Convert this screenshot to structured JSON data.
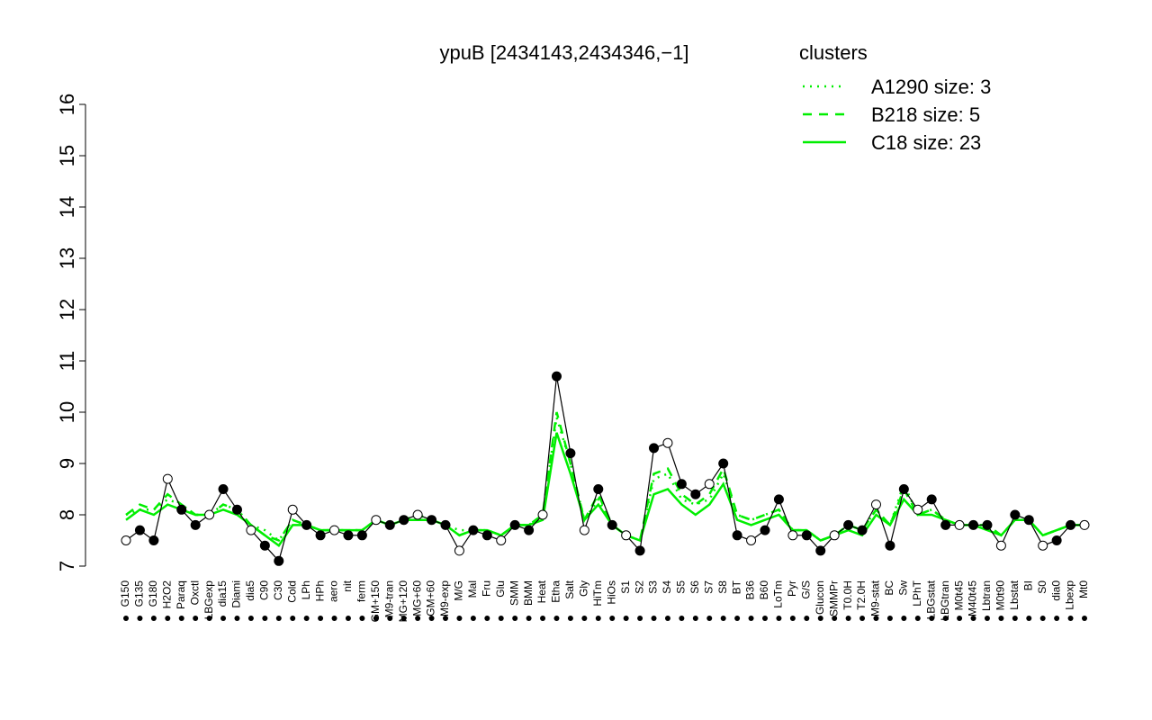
{
  "chart_data": {
    "type": "line",
    "title": "ypuB [2434143,2434346,−1]",
    "categories": [
      "G150",
      "G135",
      "G180",
      "H2O2",
      "Paraq",
      "Oxctl",
      "LBGexp",
      "dia15",
      "Diami",
      "dia5",
      "C90",
      "C30",
      "Cold",
      "LPh",
      "HPh",
      "aero",
      "nit",
      "ferm",
      "GM+150",
      "M9-tran",
      "MG+120",
      "MG+60",
      "GM+60",
      "M9-exp",
      "M/G",
      "Mal",
      "Fru",
      "Glu",
      "SMM",
      "BMM",
      "Heat",
      "Etha",
      "Salt",
      "Gly",
      "HiTm",
      "HiOs",
      "S1",
      "S2",
      "S3",
      "S4",
      "S5",
      "S6",
      "S7",
      "S8",
      "BT",
      "B36",
      "B60",
      "LoTm",
      "Pyr",
      "G/S",
      "Glucon",
      "SMMPr",
      "T0.0H",
      "T2.0H",
      "M9-stat",
      "BC",
      "Sw",
      "LPhT",
      "LBGstat",
      "LBGtran",
      "M0t45",
      "M40t45",
      "Lbtran",
      "M0t90",
      "Lbstat",
      "BI",
      "S0",
      "dia0",
      "Lbexp",
      "Mt0"
    ],
    "values": [
      7.5,
      7.7,
      7.5,
      8.7,
      8.1,
      7.8,
      8.0,
      8.5,
      8.1,
      7.7,
      7.4,
      7.1,
      8.1,
      7.8,
      7.6,
      7.7,
      7.6,
      7.6,
      7.9,
      7.8,
      7.9,
      8.0,
      7.9,
      7.8,
      7.3,
      7.7,
      7.6,
      7.5,
      7.8,
      7.7,
      8.0,
      10.7,
      9.2,
      7.7,
      8.5,
      7.8,
      7.6,
      7.3,
      9.3,
      9.4,
      8.6,
      8.4,
      8.6,
      9.0,
      7.6,
      7.5,
      7.7,
      8.3,
      7.6,
      7.6,
      7.3,
      7.6,
      7.8,
      7.7,
      8.2,
      7.4,
      8.5,
      8.1,
      8.3,
      7.8,
      7.8,
      7.8,
      7.8,
      7.4,
      8.0,
      7.9,
      7.4,
      7.5,
      7.8,
      7.8
    ],
    "point_color": "#000000",
    "legend_title": "clusters",
    "legend_position": "top-right",
    "series": [
      {
        "name": "A1290 size: 3",
        "color": "#00ee00",
        "style": "dotted",
        "values": [
          8.0,
          8.1,
          8.1,
          8.3,
          8.2,
          8.0,
          8.0,
          8.2,
          8.1,
          7.8,
          7.7,
          7.5,
          7.9,
          7.8,
          7.7,
          7.7,
          7.7,
          7.7,
          7.9,
          7.8,
          7.9,
          8.0,
          7.9,
          7.8,
          7.7,
          7.7,
          7.7,
          7.6,
          7.8,
          7.8,
          8.0,
          9.9,
          9.0,
          7.9,
          8.3,
          7.8,
          7.6,
          7.5,
          8.7,
          8.8,
          8.3,
          8.2,
          8.3,
          8.8,
          8.0,
          7.9,
          8.0,
          8.1,
          7.7,
          7.7,
          7.5,
          7.6,
          7.8,
          7.7,
          8.1,
          7.8,
          8.6,
          8.0,
          8.1,
          7.9,
          7.8,
          7.8,
          7.8,
          7.6,
          7.9,
          7.9,
          7.6,
          7.7,
          7.8,
          7.8
        ]
      },
      {
        "name": "B218 size: 5",
        "color": "#00ee00",
        "style": "dashed",
        "values": [
          8.0,
          8.2,
          8.1,
          8.4,
          8.2,
          8.0,
          8.0,
          8.2,
          8.1,
          7.8,
          7.6,
          7.5,
          7.9,
          7.8,
          7.7,
          7.7,
          7.7,
          7.7,
          7.9,
          7.8,
          7.9,
          8.0,
          7.9,
          7.8,
          7.6,
          7.7,
          7.7,
          7.6,
          7.8,
          7.8,
          8.0,
          10.0,
          9.0,
          7.9,
          8.4,
          7.8,
          7.6,
          7.5,
          8.8,
          8.9,
          8.4,
          8.2,
          8.4,
          8.9,
          8.0,
          7.9,
          8.0,
          8.1,
          7.7,
          7.7,
          7.5,
          7.6,
          7.8,
          7.7,
          8.1,
          7.8,
          8.5,
          8.0,
          8.1,
          7.9,
          7.8,
          7.8,
          7.8,
          7.6,
          7.9,
          7.9,
          7.6,
          7.7,
          7.8,
          7.8
        ]
      },
      {
        "name": "C18 size: 23",
        "color": "#00ee00",
        "style": "solid",
        "values": [
          7.9,
          8.1,
          8.0,
          8.2,
          8.1,
          8.0,
          8.0,
          8.1,
          8.0,
          7.8,
          7.6,
          7.4,
          7.8,
          7.8,
          7.7,
          7.7,
          7.7,
          7.7,
          7.9,
          7.8,
          7.9,
          7.9,
          7.9,
          7.8,
          7.6,
          7.7,
          7.7,
          7.6,
          7.8,
          7.8,
          7.9,
          9.6,
          8.8,
          7.9,
          8.2,
          7.8,
          7.6,
          7.5,
          8.4,
          8.5,
          8.2,
          8.0,
          8.2,
          8.6,
          7.9,
          7.8,
          7.9,
          8.0,
          7.7,
          7.7,
          7.5,
          7.6,
          7.7,
          7.6,
          8.0,
          7.8,
          8.3,
          8.0,
          8.0,
          7.9,
          7.8,
          7.8,
          7.7,
          7.6,
          7.9,
          7.9,
          7.6,
          7.7,
          7.8,
          7.8
        ]
      }
    ],
    "ylim": [
      7,
      16
    ],
    "yticks": [
      7,
      8,
      9,
      10,
      11,
      12,
      13,
      14,
      15,
      16
    ]
  }
}
